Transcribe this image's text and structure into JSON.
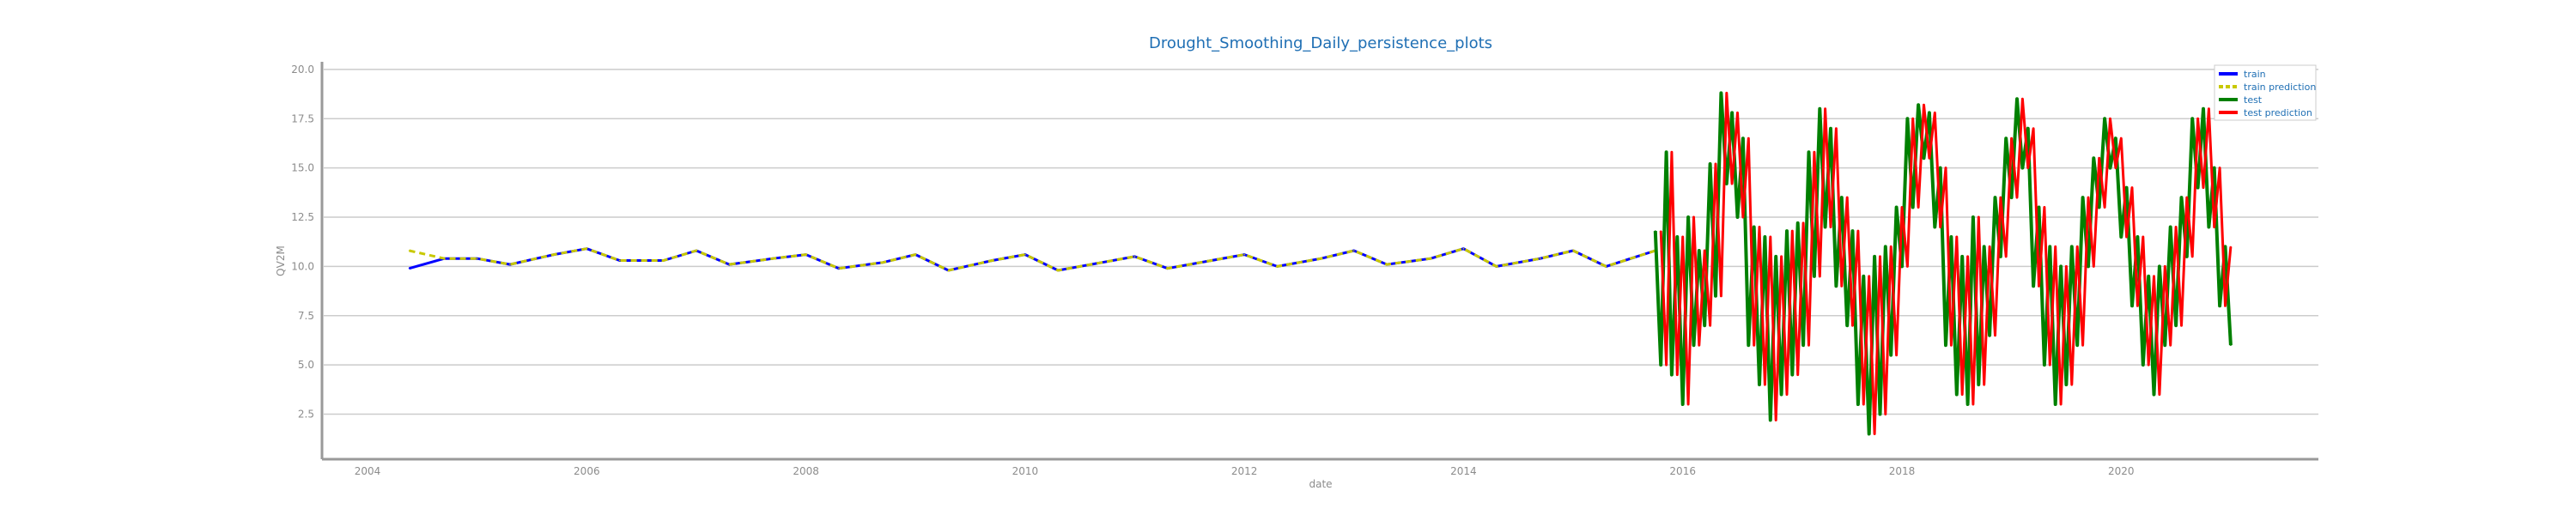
{
  "chart_data": {
    "type": "line",
    "title": "Drought_Smoothing_Daily_persistence_plots",
    "xlabel": "date",
    "ylabel": "QV2M",
    "xlim": [
      2003.6,
      2021.8
    ],
    "ylim": [
      0.3,
      20.3
    ],
    "x_ticks": [
      "2004",
      "2006",
      "2008",
      "2010",
      "2012",
      "2014",
      "2016",
      "2018",
      "2020"
    ],
    "y_ticks": [
      "2.5",
      "5.0",
      "7.5",
      "10.0",
      "12.5",
      "15.0",
      "17.5",
      "20.0"
    ],
    "grid": "horizontal",
    "legend_position": "top-right",
    "series": [
      {
        "name": "train",
        "color": "#0000ff",
        "style": "solid",
        "x": [
          2004.38,
          2004.7,
          2005.0,
          2005.3,
          2005.7,
          2006.0,
          2006.3,
          2006.7,
          2007.0,
          2007.3,
          2007.7,
          2008.0,
          2008.3,
          2008.7,
          2009.0,
          2009.3,
          2009.7,
          2010.0,
          2010.3,
          2010.7,
          2011.0,
          2011.3,
          2011.7,
          2012.0,
          2012.3,
          2012.7,
          2013.0,
          2013.3,
          2013.7,
          2014.0,
          2014.3,
          2014.7,
          2015.0,
          2015.3,
          2015.75
        ],
        "values": [
          9.9,
          10.4,
          10.4,
          10.1,
          10.6,
          10.9,
          10.3,
          10.3,
          10.8,
          10.1,
          10.4,
          10.6,
          9.9,
          10.2,
          10.6,
          9.8,
          10.3,
          10.6,
          9.8,
          10.2,
          10.5,
          9.9,
          10.3,
          10.6,
          10.0,
          10.4,
          10.8,
          10.1,
          10.4,
          10.9,
          10.0,
          10.4,
          10.8,
          10.0,
          10.8
        ]
      },
      {
        "name": "train prediction",
        "color": "#c8c800",
        "style": "dashed",
        "x": [
          2004.38,
          2004.7,
          2005.0,
          2005.3,
          2005.7,
          2006.0,
          2006.3,
          2006.7,
          2007.0,
          2007.3,
          2007.7,
          2008.0,
          2008.3,
          2008.7,
          2009.0,
          2009.3,
          2009.7,
          2010.0,
          2010.3,
          2010.7,
          2011.0,
          2011.3,
          2011.7,
          2012.0,
          2012.3,
          2012.7,
          2013.0,
          2013.3,
          2013.7,
          2014.0,
          2014.3,
          2014.7,
          2015.0,
          2015.3,
          2015.75
        ],
        "values": [
          10.8,
          10.4,
          10.4,
          10.1,
          10.6,
          10.9,
          10.3,
          10.3,
          10.8,
          10.1,
          10.4,
          10.6,
          9.9,
          10.2,
          10.6,
          9.8,
          10.3,
          10.6,
          9.8,
          10.2,
          10.5,
          9.9,
          10.3,
          10.6,
          10.0,
          10.4,
          10.8,
          10.1,
          10.4,
          10.9,
          10.0,
          10.4,
          10.8,
          10.0,
          10.8
        ]
      },
      {
        "name": "test",
        "color": "#008000",
        "style": "solid",
        "x": [
          2015.75,
          2015.8,
          2015.85,
          2015.9,
          2015.95,
          2016.0,
          2016.05,
          2016.1,
          2016.15,
          2016.2,
          2016.25,
          2016.3,
          2016.35,
          2016.4,
          2016.45,
          2016.5,
          2016.55,
          2016.6,
          2016.65,
          2016.7,
          2016.75,
          2016.8,
          2016.85,
          2016.9,
          2016.95,
          2017.0,
          2017.05,
          2017.1,
          2017.15,
          2017.2,
          2017.25,
          2017.3,
          2017.35,
          2017.4,
          2017.45,
          2017.5,
          2017.55,
          2017.6,
          2017.65,
          2017.7,
          2017.75,
          2017.8,
          2017.85,
          2017.9,
          2017.95,
          2018.0,
          2018.05,
          2018.1,
          2018.15,
          2018.2,
          2018.25,
          2018.3,
          2018.35,
          2018.4,
          2018.45,
          2018.5,
          2018.55,
          2018.6,
          2018.65,
          2018.7,
          2018.75,
          2018.8,
          2018.85,
          2018.9,
          2018.95,
          2019.0,
          2019.05,
          2019.1,
          2019.15,
          2019.2,
          2019.25,
          2019.3,
          2019.35,
          2019.4,
          2019.45,
          2019.5,
          2019.55,
          2019.6,
          2019.65,
          2019.7,
          2019.75,
          2019.8,
          2019.85,
          2019.9,
          2019.95,
          2020.0,
          2020.05,
          2020.1,
          2020.15,
          2020.2,
          2020.25,
          2020.3,
          2020.35,
          2020.4,
          2020.45,
          2020.5,
          2020.55,
          2020.6,
          2020.65,
          2020.7,
          2020.75,
          2020.8,
          2020.85,
          2020.9,
          2020.95,
          2021.0
        ],
        "values": [
          11.8,
          5.0,
          15.8,
          4.5,
          11.5,
          3.0,
          12.5,
          6.0,
          10.8,
          7.0,
          15.2,
          8.5,
          18.8,
          14.2,
          17.8,
          12.5,
          16.5,
          6.0,
          12.0,
          4.0,
          11.5,
          2.2,
          10.5,
          3.5,
          11.8,
          4.5,
          12.2,
          6.0,
          15.8,
          9.5,
          18.0,
          12.0,
          17.0,
          9.0,
          13.5,
          7.0,
          11.8,
          3.0,
          9.5,
          1.5,
          10.5,
          2.5,
          11.0,
          5.5,
          13.0,
          10.0,
          17.5,
          13.0,
          18.2,
          15.5,
          17.8,
          12.0,
          15.0,
          6.0,
          11.5,
          3.5,
          10.5,
          3.0,
          12.5,
          4.0,
          11.0,
          6.5,
          13.5,
          10.5,
          16.5,
          13.5,
          18.5,
          15.0,
          17.0,
          9.0,
          13.0,
          5.0,
          11.0,
          3.0,
          10.0,
          4.0,
          11.0,
          6.0,
          13.5,
          10.0,
          15.5,
          13.0,
          17.5,
          15.0,
          16.5,
          11.5,
          14.0,
          8.0,
          11.5,
          5.0,
          9.5,
          3.5,
          10.0,
          6.0,
          12.0,
          7.0,
          13.5,
          10.5,
          17.5,
          14.0,
          18.0,
          12.0,
          15.0,
          8.0,
          11.0,
          6.0
        ]
      },
      {
        "name": "test prediction",
        "color": "#ff0000",
        "style": "solid",
        "x": [
          2015.8,
          2015.85,
          2015.9,
          2015.95,
          2016.0,
          2016.05,
          2016.1,
          2016.15,
          2016.2,
          2016.25,
          2016.3,
          2016.35,
          2016.4,
          2016.45,
          2016.5,
          2016.55,
          2016.6,
          2016.65,
          2016.7,
          2016.75,
          2016.8,
          2016.85,
          2016.9,
          2016.95,
          2017.0,
          2017.05,
          2017.1,
          2017.15,
          2017.2,
          2017.25,
          2017.3,
          2017.35,
          2017.4,
          2017.45,
          2017.5,
          2017.55,
          2017.6,
          2017.65,
          2017.7,
          2017.75,
          2017.8,
          2017.85,
          2017.9,
          2017.95,
          2018.0,
          2018.05,
          2018.1,
          2018.15,
          2018.2,
          2018.25,
          2018.3,
          2018.35,
          2018.4,
          2018.45,
          2018.5,
          2018.55,
          2018.6,
          2018.65,
          2018.7,
          2018.75,
          2018.8,
          2018.85,
          2018.9,
          2018.95,
          2019.0,
          2019.05,
          2019.1,
          2019.15,
          2019.2,
          2019.25,
          2019.3,
          2019.35,
          2019.4,
          2019.45,
          2019.5,
          2019.55,
          2019.6,
          2019.65,
          2019.7,
          2019.75,
          2019.8,
          2019.85,
          2019.9,
          2019.95,
          2020.0,
          2020.05,
          2020.1,
          2020.15,
          2020.2,
          2020.25,
          2020.3,
          2020.35,
          2020.4,
          2020.45,
          2020.5,
          2020.55,
          2020.6,
          2020.65,
          2020.7,
          2020.75,
          2020.8,
          2020.85,
          2020.9,
          2020.95,
          2021.0
        ],
        "values": [
          11.8,
          5.0,
          15.8,
          4.5,
          11.5,
          3.0,
          12.5,
          6.0,
          10.8,
          7.0,
          15.2,
          8.5,
          18.8,
          14.2,
          17.8,
          12.5,
          16.5,
          6.0,
          12.0,
          4.0,
          11.5,
          2.2,
          10.5,
          3.5,
          11.8,
          4.5,
          12.2,
          6.0,
          15.8,
          9.5,
          18.0,
          12.0,
          17.0,
          9.0,
          13.5,
          7.0,
          11.8,
          3.0,
          9.5,
          1.5,
          10.5,
          2.5,
          11.0,
          5.5,
          13.0,
          10.0,
          17.5,
          13.0,
          18.2,
          15.5,
          17.8,
          12.0,
          15.0,
          6.0,
          11.5,
          3.5,
          10.5,
          3.0,
          12.5,
          4.0,
          11.0,
          6.5,
          13.5,
          10.5,
          16.5,
          13.5,
          18.5,
          15.0,
          17.0,
          9.0,
          13.0,
          5.0,
          11.0,
          3.0,
          10.0,
          4.0,
          11.0,
          6.0,
          13.5,
          10.0,
          15.5,
          13.0,
          17.5,
          15.0,
          16.5,
          11.5,
          14.0,
          8.0,
          11.5,
          5.0,
          9.5,
          3.5,
          10.0,
          6.0,
          12.0,
          7.0,
          13.5,
          10.5,
          17.5,
          14.0,
          18.0,
          12.0,
          15.0,
          8.0,
          11.0
        ]
      }
    ]
  }
}
